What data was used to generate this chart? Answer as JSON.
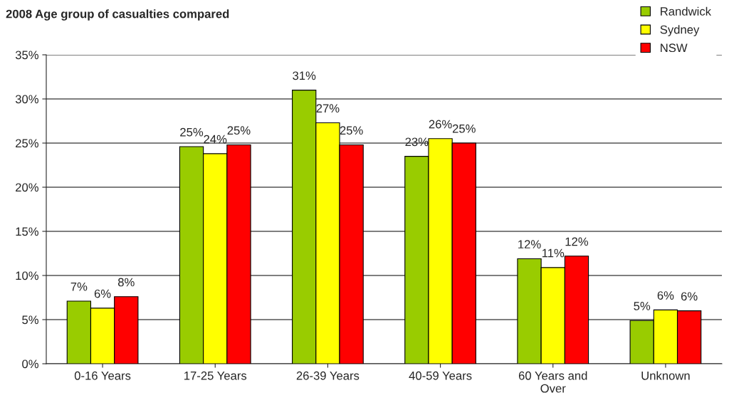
{
  "chart_data": {
    "type": "bar",
    "title": "2008 Age group of casualties compared",
    "categories": [
      "0-16 Years",
      "17-25 Years",
      "26-39 Years",
      "40-59 Years",
      "60 Years and\nOver",
      "Unknown"
    ],
    "series": [
      {
        "name": "Randwick",
        "color": "#99cc00",
        "values": [
          7.1,
          24.6,
          31.0,
          23.5,
          11.9,
          4.9
        ],
        "value_labels": [
          "7%",
          "25%",
          "31%",
          "23%",
          "12%",
          "5%"
        ]
      },
      {
        "name": "Sydney",
        "color": "#ffff00",
        "values": [
          6.3,
          23.8,
          27.3,
          25.5,
          10.9,
          6.1
        ],
        "value_labels": [
          "6%",
          "24%",
          "27%",
          "26%",
          "11%",
          "6%"
        ]
      },
      {
        "name": "NSW",
        "color": "#ff0000",
        "values": [
          7.6,
          24.8,
          24.8,
          25.0,
          12.2,
          6.0
        ],
        "value_labels": [
          "8%",
          "25%",
          "25%",
          "25%",
          "12%",
          "6%"
        ]
      }
    ],
    "ylim": [
      0,
      35
    ],
    "yticks": [
      {
        "value": 0,
        "label": "0%"
      },
      {
        "value": 5,
        "label": "5%"
      },
      {
        "value": 10,
        "label": "10%"
      },
      {
        "value": 15,
        "label": "15%"
      },
      {
        "value": 20,
        "label": "20%"
      },
      {
        "value": 25,
        "label": "25%"
      },
      {
        "value": 30,
        "label": "30%"
      },
      {
        "value": 35,
        "label": "35%"
      }
    ],
    "grid": "y",
    "legend": "top right"
  }
}
